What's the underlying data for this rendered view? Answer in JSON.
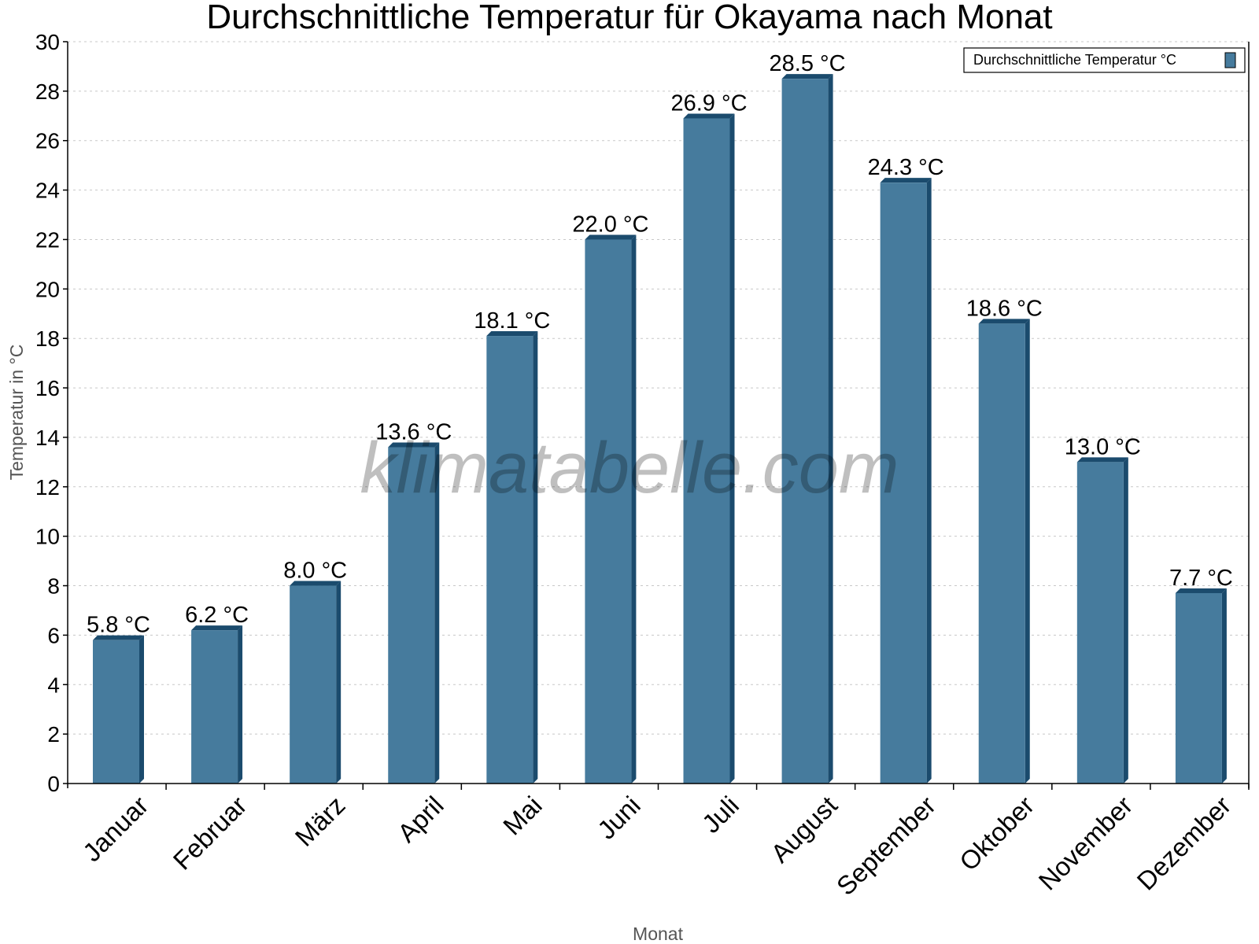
{
  "chart_data": {
    "type": "bar",
    "title": "Durchschnittliche Temperatur für Okayama nach Monat",
    "xlabel": "Monat",
    "ylabel": "Temperatur in °C",
    "categories": [
      "Januar",
      "Februar",
      "März",
      "April",
      "Mai",
      "Juni",
      "Juli",
      "August",
      "September",
      "Oktober",
      "November",
      "Dezember"
    ],
    "series": [
      {
        "name": "Durchschnittliche Temperatur °C",
        "values": [
          5.8,
          6.2,
          8.0,
          13.6,
          18.1,
          22.0,
          26.9,
          28.5,
          24.3,
          18.6,
          13.0,
          7.7
        ],
        "labels": [
          "5.8 °C",
          "6.2 °C",
          "8.0 °C",
          "13.6 °C",
          "18.1 °C",
          "22.0 °C",
          "26.9 °C",
          "28.5 °C",
          "24.3 °C",
          "18.6 °C",
          "13.0 °C",
          "7.7 °C"
        ]
      }
    ],
    "ylim": [
      0,
      30
    ],
    "yticks": [
      0,
      2,
      4,
      6,
      8,
      10,
      12,
      14,
      16,
      18,
      20,
      22,
      24,
      26,
      28,
      30
    ],
    "grid": true,
    "legend_position": "top-right",
    "colors": {
      "bar": "#467b9d",
      "bar_side": "#1b4b6d",
      "grid": "#c8c8c8"
    }
  },
  "watermark": "klimatabelle.com"
}
